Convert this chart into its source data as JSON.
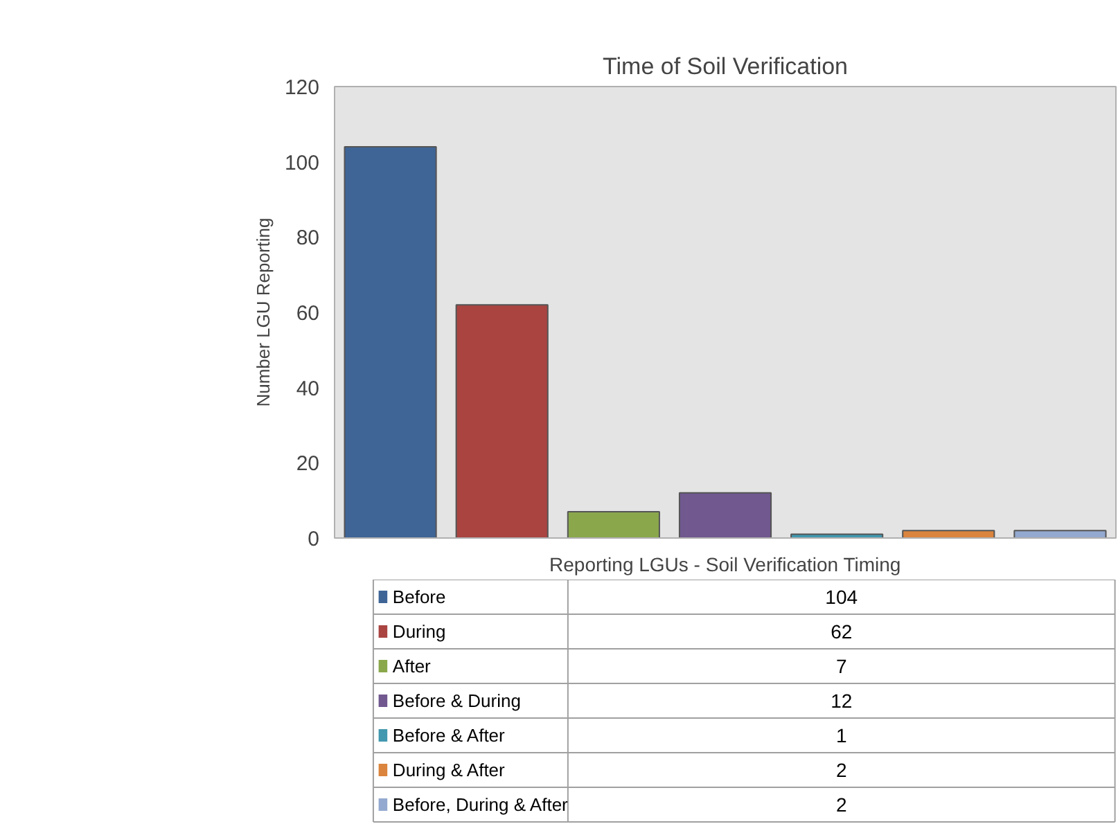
{
  "chart_data": {
    "type": "bar",
    "title": "Time of Soil Verification",
    "ylabel": "Number LGU Reporting",
    "categories": [
      "Reporting LGUs - Soil Verification Timing"
    ],
    "series": [
      {
        "name": "Before",
        "color": "#3f6597",
        "values": [
          104
        ]
      },
      {
        "name": "During",
        "color": "#a94441",
        "values": [
          62
        ]
      },
      {
        "name": "After",
        "color": "#8aa84b",
        "values": [
          7
        ]
      },
      {
        "name": "Before & During",
        "color": "#71588f",
        "values": [
          12
        ]
      },
      {
        "name": "Before & After",
        "color": "#4198af",
        "values": [
          1
        ]
      },
      {
        "name": "During & After",
        "color": "#db843d",
        "values": [
          2
        ]
      },
      {
        "name": "Before, During & After",
        "color": "#93a9cf",
        "values": [
          2
        ]
      }
    ],
    "ylim": [
      0,
      120
    ],
    "yticks": [
      0,
      20,
      40,
      60,
      80,
      100,
      120
    ],
    "annotations": [
      "104",
      "62",
      "7",
      "12",
      "1",
      "2",
      "2"
    ],
    "legend": "bottom"
  }
}
